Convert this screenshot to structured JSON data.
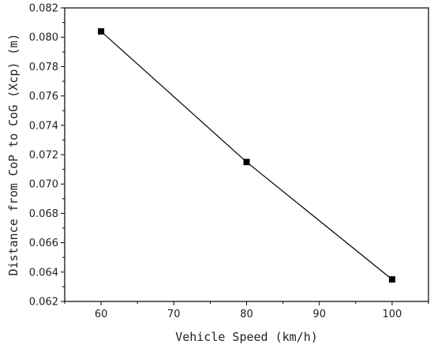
{
  "chart_data": {
    "type": "line",
    "title": "",
    "xlabel": "Vehicle Speed (km/h)",
    "ylabel": "Distance from CoP to CoG (Xcp) (m)",
    "xlim": [
      55,
      105
    ],
    "ylim": [
      0.062,
      0.082
    ],
    "xticks": [
      60,
      70,
      80,
      90,
      100
    ],
    "xtick_labels": [
      "60",
      "70",
      "80",
      "90",
      "100"
    ],
    "yticks": [
      0.062,
      0.064,
      0.066,
      0.068,
      0.07,
      0.072,
      0.074,
      0.076,
      0.078,
      0.08,
      0.082
    ],
    "ytick_labels": [
      "0.062",
      "0.064",
      "0.066",
      "0.068",
      "0.070",
      "0.072",
      "0.074",
      "0.076",
      "0.078",
      "0.080",
      "0.082"
    ],
    "grid": false,
    "legend": "none",
    "series": [
      {
        "x": [
          60,
          80,
          100
        ],
        "y": [
          0.0804,
          0.0715,
          0.0635
        ],
        "marker": "square",
        "color": "#000000"
      }
    ]
  }
}
